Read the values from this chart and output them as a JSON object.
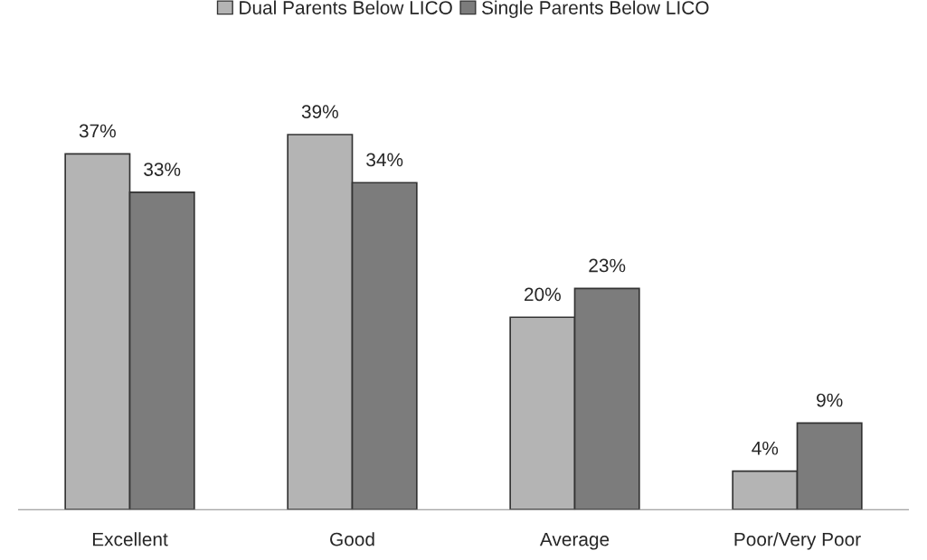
{
  "chart_data": {
    "type": "bar",
    "categories": [
      "Excellent",
      "Good",
      "Average",
      "Poor/Very Poor"
    ],
    "series": [
      {
        "name": "Dual Parents Below LICO",
        "color": "#b4b4b4",
        "values": [
          37,
          39,
          20,
          4
        ],
        "value_labels": [
          "37%",
          "39%",
          "20%",
          "4%"
        ]
      },
      {
        "name": "Single Parents Below LICO",
        "color": "#7c7c7c",
        "values": [
          33,
          34,
          23,
          9
        ],
        "value_labels": [
          "33%",
          "34%",
          "23%",
          "9%"
        ]
      }
    ],
    "legend": "top",
    "grid": false
  }
}
